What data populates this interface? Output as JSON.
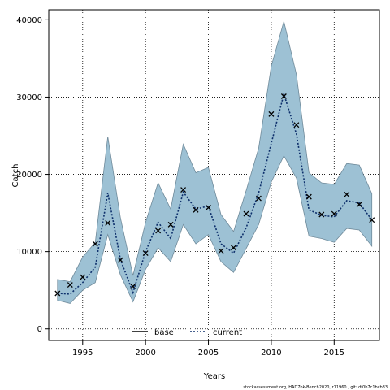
{
  "chart_data": {
    "type": "line",
    "title": "",
    "xlabel": "Years",
    "ylabel": "Catch",
    "xlim": [
      1992.3,
      2018.6
    ],
    "ylim": [
      -1500,
      41300
    ],
    "x_ticks": [
      1995,
      2000,
      2005,
      2010,
      2015
    ],
    "y_ticks": [
      0,
      10000,
      20000,
      30000,
      40000
    ],
    "grid": true,
    "legend_position": "bottom-center",
    "x": [
      1993,
      1994,
      1995,
      1996,
      1997,
      1998,
      1999,
      2000,
      2001,
      2002,
      2003,
      2004,
      2005,
      2006,
      2007,
      2008,
      2009,
      2010,
      2011,
      2012,
      2013,
      2014,
      2015,
      2016,
      2017,
      2018
    ],
    "series": [
      {
        "name": "base",
        "style": "observed points (x markers)",
        "values": [
          4600,
          5700,
          6700,
          11000,
          13700,
          8900,
          5500,
          9800,
          12700,
          13500,
          18000,
          15400,
          15700,
          10100,
          10500,
          14900,
          16900,
          27800,
          30100,
          26400,
          17100,
          14800,
          14900,
          17400,
          16100,
          14100
        ]
      },
      {
        "name": "current",
        "style": "dotted line",
        "values": [
          4600,
          4500,
          6000,
          8000,
          17600,
          9000,
          4700,
          10000,
          13800,
          11700,
          17700,
          15500,
          15900,
          11000,
          9800,
          13100,
          17600,
          24000,
          30400,
          25200,
          15400,
          14700,
          14500,
          16600,
          16300,
          14100
        ]
      }
    ],
    "band": {
      "upper": [
        6400,
        6100,
        9300,
        11200,
        24900,
        14400,
        6900,
        13800,
        18900,
        15500,
        23900,
        20200,
        20900,
        14800,
        12600,
        17900,
        23400,
        34000,
        39800,
        32900,
        20200,
        18900,
        18700,
        21400,
        21200,
        17500
      ],
      "lower": [
        3700,
        3300,
        5000,
        6000,
        12200,
        7000,
        3500,
        7700,
        10500,
        8700,
        13500,
        11000,
        12200,
        8700,
        7300,
        10400,
        13500,
        19000,
        22400,
        19500,
        12000,
        11700,
        11200,
        13000,
        12800,
        10700
      ]
    },
    "colors": {
      "band_fill": "#9dc1d4",
      "band_edge": "#6f8a9a",
      "grid": "#000000"
    },
    "footnote": "stockassessment.org, HAD7bk-Bench2020, r11960 ,  git: df0b7c1bcb83"
  }
}
